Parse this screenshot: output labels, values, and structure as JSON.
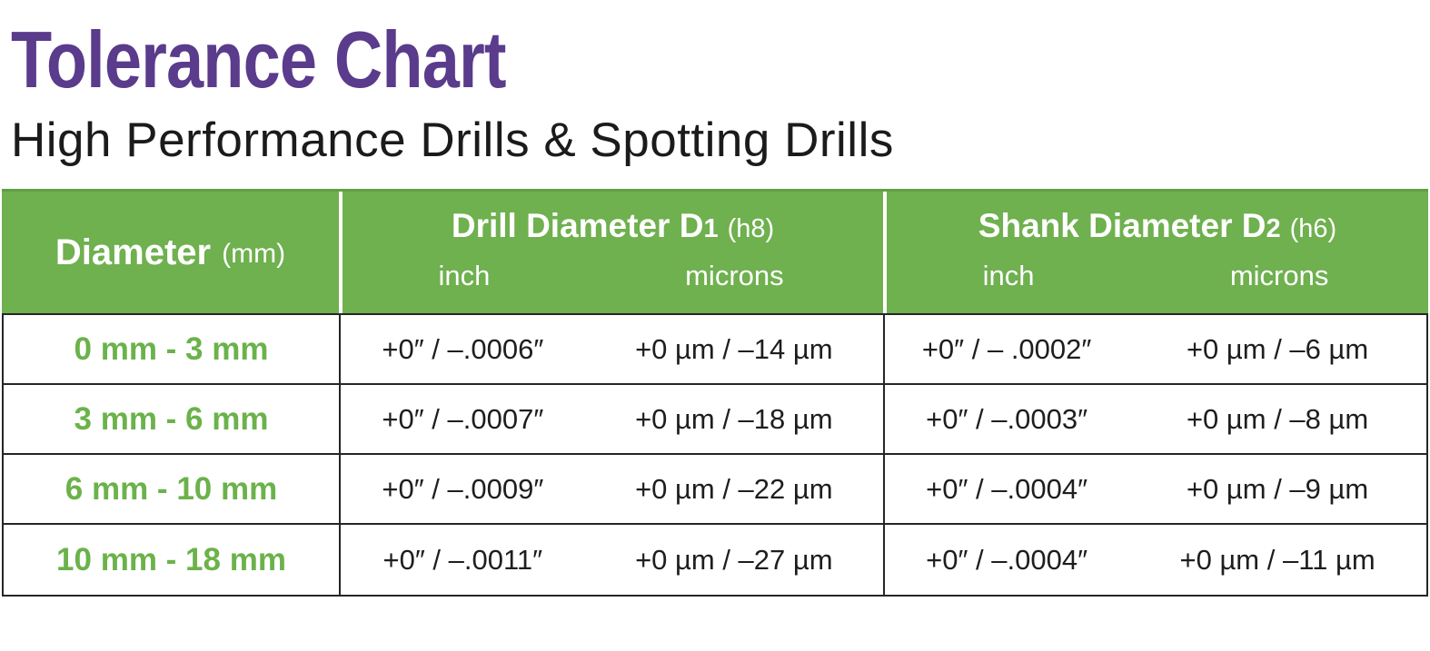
{
  "page": {
    "title": "Tolerance Chart",
    "subtitle": "High Performance Drills & Spotting Drills"
  },
  "colors": {
    "title_purple": "#5A3B8C",
    "header_green": "#6FB04F",
    "row_label_green": "#6BB24B",
    "text_black": "#1e1e1e",
    "border_black": "#262626",
    "header_text_white": "#ffffff"
  },
  "table": {
    "diameter_header": {
      "label": "Diameter",
      "unit": "(mm)"
    },
    "groups": [
      {
        "name": "Drill Diameter D",
        "digit": "1",
        "fit": "(h8)",
        "sub": [
          "inch",
          "microns"
        ]
      },
      {
        "name": "Shank Diameter D",
        "digit": "2",
        "fit": "(h6)",
        "sub": [
          "inch",
          "microns"
        ]
      }
    ],
    "rows": [
      {
        "diameter": "0 mm - 3 mm",
        "drill_inch": "+0″ / –.0006″",
        "drill_microns": "+0 µm / –14 µm",
        "shank_inch": "+0″ / – .0002″",
        "shank_microns": "+0 µm / –6 µm"
      },
      {
        "diameter": "3 mm - 6 mm",
        "drill_inch": "+0″ / –.0007″",
        "drill_microns": "+0 µm / –18 µm",
        "shank_inch": "+0″ / –.0003″",
        "shank_microns": "+0 µm / –8 µm"
      },
      {
        "diameter": "6 mm - 10 mm",
        "drill_inch": "+0″ / –.0009″",
        "drill_microns": "+0 µm / –22 µm",
        "shank_inch": "+0″ / –.0004″",
        "shank_microns": "+0 µm / –9 µm"
      },
      {
        "diameter": "10 mm - 18 mm",
        "drill_inch": "+0″ / –.0011″",
        "drill_microns": "+0 µm / –27 µm",
        "shank_inch": "+0″ / –.0004″",
        "shank_microns": "+0 µm / –11 µm"
      }
    ]
  },
  "chart_data": {
    "type": "table",
    "title": "Tolerance Chart",
    "subtitle": "High Performance Drills & Spotting Drills",
    "columns": [
      "Diameter (mm)",
      "Drill Diameter D1 (h8) — inch",
      "Drill Diameter D1 (h8) — microns",
      "Shank Diameter D2 (h6) — inch",
      "Shank Diameter D2 (h6) — microns"
    ],
    "rows": [
      [
        "0 mm - 3 mm",
        "+0″ / –.0006″",
        "+0 µm / –14 µm",
        "+0″ / – .0002″",
        "+0 µm / –6 µm"
      ],
      [
        "3 mm - 6 mm",
        "+0″ / –.0007″",
        "+0 µm / –18 µm",
        "+0″ / –.0003″",
        "+0 µm / –8 µm"
      ],
      [
        "6 mm - 10 mm",
        "+0″ / –.0009″",
        "+0 µm / –22 µm",
        "+0″ / –.0004″",
        "+0 µm / –9 µm"
      ],
      [
        "10 mm - 18 mm",
        "+0″ / –.0011″",
        "+0 µm / –27 µm",
        "+0″ / –.0004″",
        "+0 µm / –11 µm"
      ]
    ]
  }
}
